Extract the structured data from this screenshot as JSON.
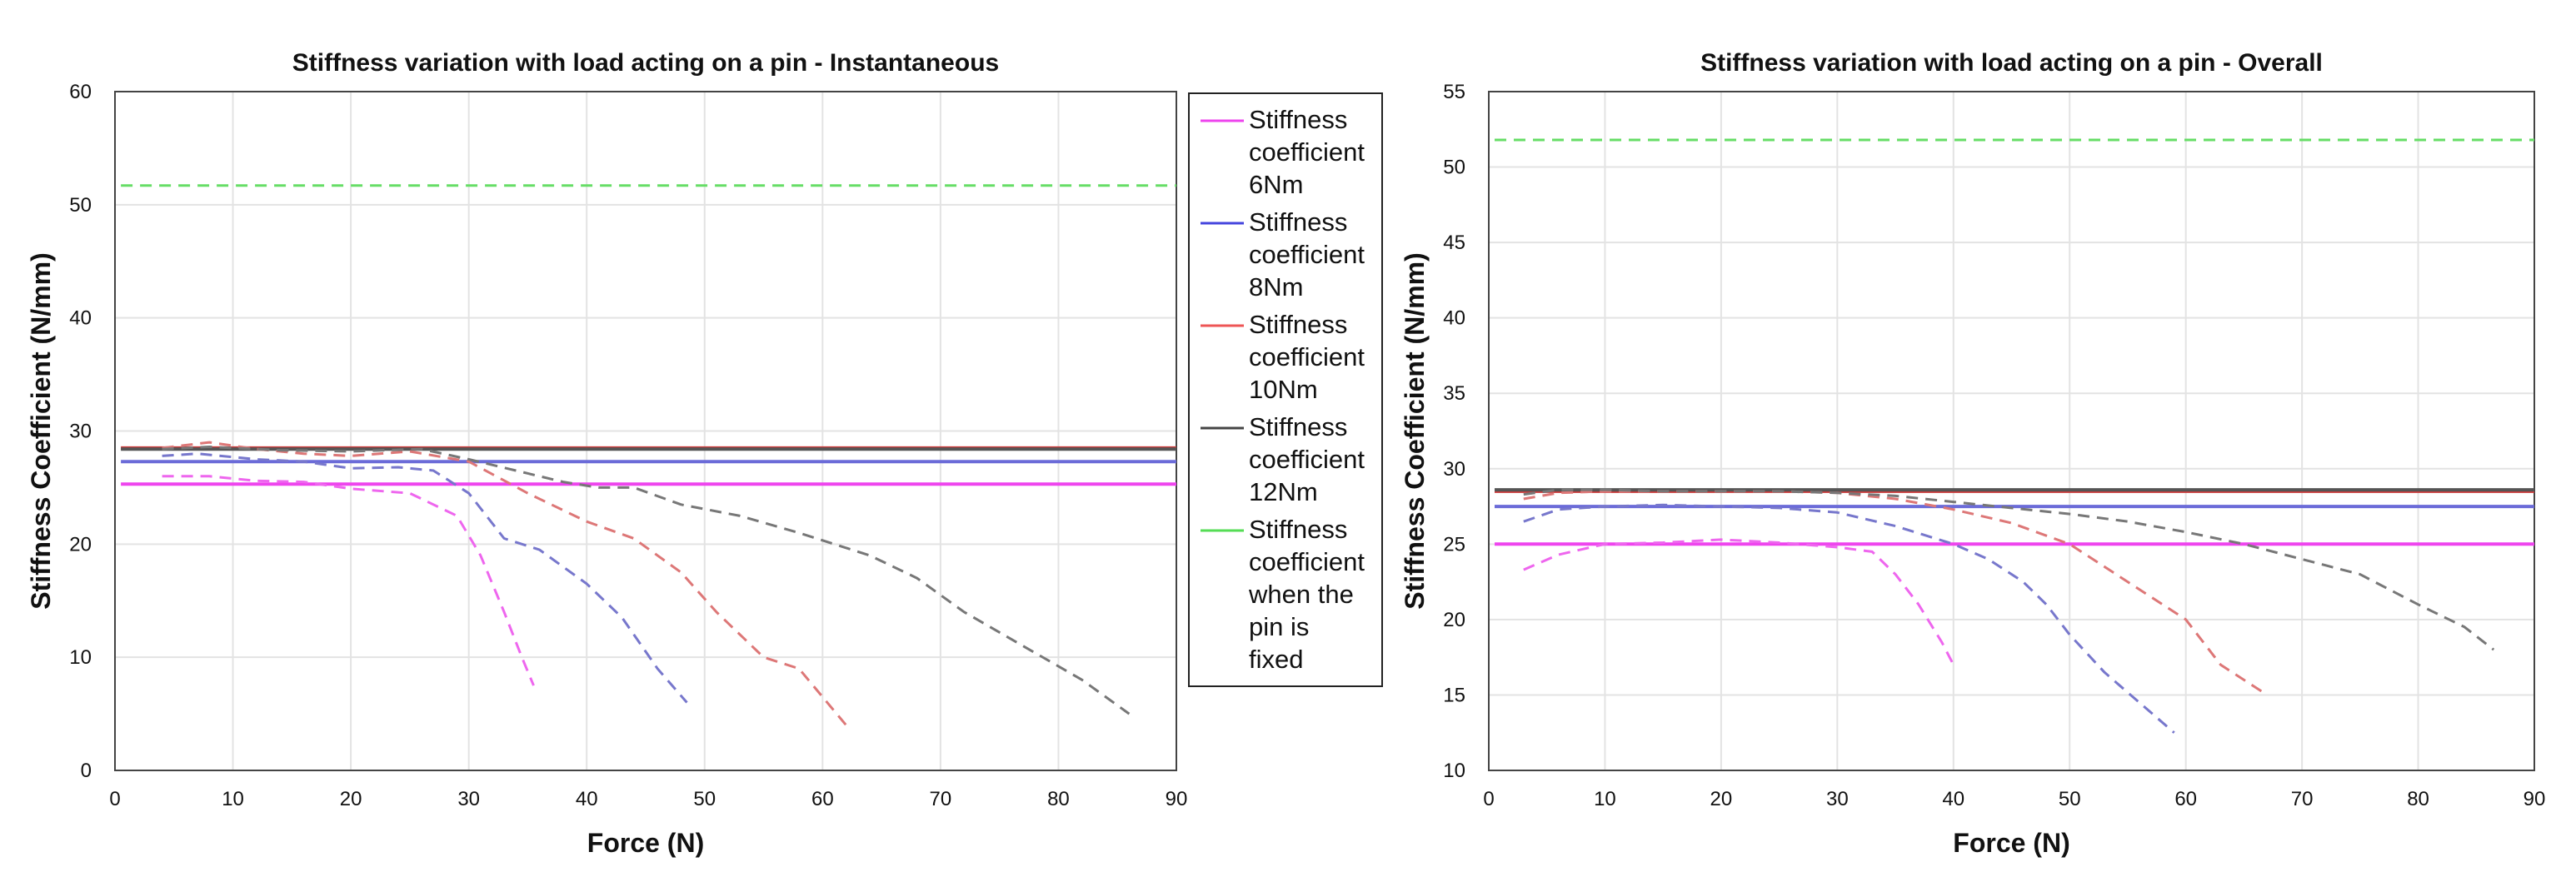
{
  "chart_data": [
    {
      "type": "line",
      "title": "Stiffness variation with load acting on a pin - Instantaneous",
      "xlabel": "Force (N)",
      "ylabel": "Stiffness Coefficient (N/mm)",
      "xlim": [
        0,
        90
      ],
      "ylim": [
        0,
        60
      ],
      "xticks": [
        0,
        10,
        20,
        30,
        40,
        50,
        60,
        70,
        80,
        90
      ],
      "yticks": [
        0,
        10,
        20,
        30,
        40,
        50,
        60
      ],
      "grid": true,
      "legend_position": "outside-right",
      "series": [
        {
          "name": "Stiffness coefficient 6Nm (constant)",
          "color": "#ee44ee",
          "style": "solid",
          "x": [
            0.5,
            90
          ],
          "y": [
            25.3,
            25.3
          ]
        },
        {
          "name": "Stiffness coefficient 8Nm (constant)",
          "color": "#6b6bd8",
          "style": "solid",
          "x": [
            0.5,
            90
          ],
          "y": [
            27.3,
            27.3
          ]
        },
        {
          "name": "Stiffness coefficient 10Nm (constant)",
          "color": "#cc3a3a",
          "style": "solid",
          "x": [
            0.5,
            90
          ],
          "y": [
            28.5,
            28.5
          ]
        },
        {
          "name": "Stiffness coefficient 12Nm (constant)",
          "color": "#555555",
          "style": "solid",
          "x": [
            0.5,
            90
          ],
          "y": [
            28.4,
            28.4
          ]
        },
        {
          "name": "Stiffness coefficient when the pin is fixed",
          "color": "#66dd66",
          "style": "dashed",
          "x": [
            0.5,
            90
          ],
          "y": [
            51.7,
            51.7
          ]
        },
        {
          "name": "Stiffness coefficient 6Nm",
          "color": "#ee66ee",
          "style": "dashed",
          "x": [
            4,
            8,
            12,
            16,
            20,
            25,
            29,
            31,
            33,
            34.5,
            35.5
          ],
          "y": [
            26,
            26,
            25.6,
            25.5,
            24.9,
            24.5,
            22.5,
            19,
            14,
            10,
            7.5
          ]
        },
        {
          "name": "Stiffness coefficient 8Nm",
          "color": "#7777cc",
          "style": "dashed",
          "x": [
            4,
            7,
            12,
            16,
            20,
            24,
            27,
            30,
            33,
            36,
            40,
            43,
            46,
            48.5
          ],
          "y": [
            27.8,
            28,
            27.5,
            27.3,
            26.7,
            26.8,
            26.5,
            24.5,
            20.5,
            19.5,
            16.5,
            13.5,
            9,
            6
          ]
        },
        {
          "name": "Stiffness coefficient 10Nm",
          "color": "#dd7777",
          "style": "dashed",
          "x": [
            4,
            8,
            12,
            16,
            20,
            25,
            30,
            35,
            40,
            44,
            48,
            51,
            55,
            58,
            60,
            62
          ],
          "y": [
            28.5,
            29,
            28.4,
            28,
            27.8,
            28.2,
            27.3,
            24.5,
            22,
            20.5,
            17.5,
            14,
            10,
            9,
            6.5,
            4
          ]
        },
        {
          "name": "Stiffness coefficient 12Nm",
          "color": "#777777",
          "style": "dashed",
          "x": [
            4,
            8,
            14,
            20,
            26,
            30,
            34,
            38,
            41,
            44,
            48,
            53,
            58,
            64,
            68,
            72,
            77,
            82,
            86
          ],
          "y": [
            28.4,
            28.6,
            28.3,
            28.2,
            28.4,
            27.5,
            26.5,
            25.5,
            25,
            25,
            23.5,
            22.5,
            21,
            19,
            17,
            14,
            11,
            8,
            5
          ]
        }
      ]
    },
    {
      "type": "line",
      "title": "Stiffness variation with load acting on a pin - Overall",
      "xlabel": "Force (N)",
      "ylabel": "Stiffness Coefficient (N/mm)",
      "xlim": [
        0,
        90
      ],
      "ylim": [
        10,
        55
      ],
      "xticks": [
        0,
        10,
        20,
        30,
        40,
        50,
        60,
        70,
        80,
        90
      ],
      "yticks": [
        10,
        15,
        20,
        25,
        30,
        35,
        40,
        45,
        50,
        55
      ],
      "grid": true,
      "legend_position": "none",
      "series": [
        {
          "name": "6Nm (constant)",
          "color": "#ee44ee",
          "style": "solid",
          "x": [
            0.5,
            90
          ],
          "y": [
            25.0,
            25.0
          ]
        },
        {
          "name": "8Nm (constant)",
          "color": "#6b6bd8",
          "style": "solid",
          "x": [
            0.5,
            90
          ],
          "y": [
            27.5,
            27.5
          ]
        },
        {
          "name": "10Nm (constant)",
          "color": "#cc3a3a",
          "style": "solid",
          "x": [
            0.5,
            90
          ],
          "y": [
            28.5,
            28.5
          ]
        },
        {
          "name": "12Nm (constant)",
          "color": "#555555",
          "style": "solid",
          "x": [
            0.5,
            90
          ],
          "y": [
            28.6,
            28.6
          ]
        },
        {
          "name": "pin fixed",
          "color": "#66dd66",
          "style": "dashed",
          "x": [
            0.5,
            90
          ],
          "y": [
            51.8,
            51.8
          ]
        },
        {
          "name": "6Nm",
          "color": "#ee66ee",
          "style": "dashed",
          "x": [
            3,
            6,
            10,
            15,
            20,
            25,
            30,
            33,
            35,
            37,
            39,
            40
          ],
          "y": [
            23.3,
            24.3,
            25,
            25.1,
            25.3,
            25.1,
            24.8,
            24.5,
            23,
            21,
            18.5,
            17
          ]
        },
        {
          "name": "8Nm",
          "color": "#7777cc",
          "style": "dashed",
          "x": [
            3,
            6,
            10,
            15,
            20,
            25,
            30,
            35,
            40,
            43,
            46,
            48,
            50,
            53,
            56,
            59
          ],
          "y": [
            26.5,
            27.3,
            27.5,
            27.6,
            27.5,
            27.4,
            27.1,
            26.2,
            25,
            24,
            22.5,
            21,
            19,
            16.5,
            14.5,
            12.5
          ]
        },
        {
          "name": "10Nm",
          "color": "#dd7777",
          "style": "dashed",
          "x": [
            3,
            6,
            10,
            15,
            20,
            25,
            30,
            35,
            40,
            45,
            50,
            55,
            60,
            63,
            67
          ],
          "y": [
            28,
            28.4,
            28.5,
            28.5,
            28.5,
            28.5,
            28.4,
            28,
            27.3,
            26.4,
            25,
            22.5,
            20,
            17,
            15
          ]
        },
        {
          "name": "12Nm",
          "color": "#777777",
          "style": "dashed",
          "x": [
            3,
            6,
            10,
            15,
            20,
            25,
            30,
            35,
            40,
            45,
            50,
            55,
            60,
            65,
            70,
            75,
            80,
            84,
            86.5
          ],
          "y": [
            28.3,
            28.6,
            28.6,
            28.5,
            28.5,
            28.5,
            28.4,
            28.2,
            27.8,
            27.4,
            27,
            26.5,
            25.8,
            25,
            24,
            23,
            21,
            19.5,
            18
          ]
        }
      ]
    }
  ],
  "legend": {
    "items": [
      {
        "label": "Stiffness coefficient 6Nm",
        "color": "#ee44ee"
      },
      {
        "label": "Stiffness coefficient 8Nm",
        "color": "#4444dd"
      },
      {
        "label": "Stiffness coefficient 10Nm",
        "color": "#ee5555"
      },
      {
        "label": "Stiffness coefficient 12Nm",
        "color": "#444444"
      },
      {
        "label": "Stiffness coefficient when the pin is fixed",
        "color": "#55dd55"
      }
    ]
  }
}
